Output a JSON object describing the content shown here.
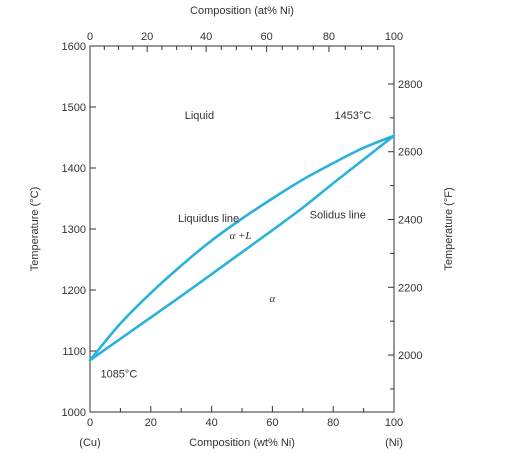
{
  "chart_data": {
    "type": "line",
    "top_axis": {
      "label": "Composition (at% Ni)",
      "ticks": [
        0,
        20,
        40,
        60,
        80,
        100
      ],
      "tick_labels": [
        "0",
        "20",
        "40",
        "60",
        "80",
        "100"
      ],
      "tick_positions_wt_pct": [
        0,
        18.8,
        38.2,
        58.1,
        78.6,
        100
      ]
    },
    "bottom_axis": {
      "label": "Composition (wt% Ni)",
      "range": [
        0,
        100
      ],
      "ticks": [
        0,
        20,
        40,
        60,
        80,
        100
      ],
      "tick_labels": [
        "0",
        "20",
        "40",
        "60",
        "80",
        "100"
      ],
      "end_labels": {
        "left": "(Cu)",
        "right": "(Ni)"
      }
    },
    "left_axis": {
      "label": "Temperature (°C)",
      "range": [
        1000,
        1600
      ],
      "ticks": [
        1000,
        1100,
        1200,
        1300,
        1400,
        1500,
        1600
      ],
      "tick_labels": [
        "1000",
        "1100",
        "1200",
        "1300",
        "1400",
        "1500",
        "1600"
      ]
    },
    "right_axis": {
      "label": "Temperature (°F)",
      "ticks": [
        2000,
        2200,
        2400,
        2600,
        2800
      ],
      "tick_labels": [
        "2000",
        "2200",
        "2400",
        "2600",
        "2800"
      ],
      "minor_ticks": [
        1900,
        2100,
        2300,
        2500,
        2700
      ]
    },
    "series": [
      {
        "name": "Liquidus line",
        "color": "#2bb1dc",
        "x": [
          0,
          10,
          20,
          30,
          40,
          50,
          60,
          70,
          80,
          90,
          100
        ],
        "y": [
          1085,
          1145,
          1195,
          1240,
          1281,
          1317,
          1350,
          1381,
          1408,
          1433,
          1453
        ]
      },
      {
        "name": "Solidus line",
        "color": "#2bb1dc",
        "x": [
          0,
          10,
          20,
          30,
          40,
          50,
          60,
          70,
          80,
          90,
          100
        ],
        "y": [
          1085,
          1120,
          1155,
          1190,
          1226,
          1262,
          1298,
          1335,
          1375,
          1414,
          1453
        ]
      }
    ],
    "annotations": [
      {
        "text": "Liquid",
        "x": 36,
        "y": 1487,
        "style": "normal"
      },
      {
        "text": "1453°C",
        "x": 86.5,
        "y": 1487,
        "style": "normal"
      },
      {
        "text": "Liquidus line",
        "x": 39,
        "y": 1318,
        "style": "normal"
      },
      {
        "text": "Solidus line",
        "x": 81.5,
        "y": 1324,
        "style": "normal"
      },
      {
        "text": "α +L",
        "x": 49.5,
        "y": 1290,
        "style": "greek"
      },
      {
        "text": "α",
        "x": 60,
        "y": 1187,
        "style": "greek"
      },
      {
        "text": "1085°C",
        "x": 9.5,
        "y": 1063,
        "style": "normal"
      }
    ],
    "grid": false,
    "legend": "none"
  }
}
